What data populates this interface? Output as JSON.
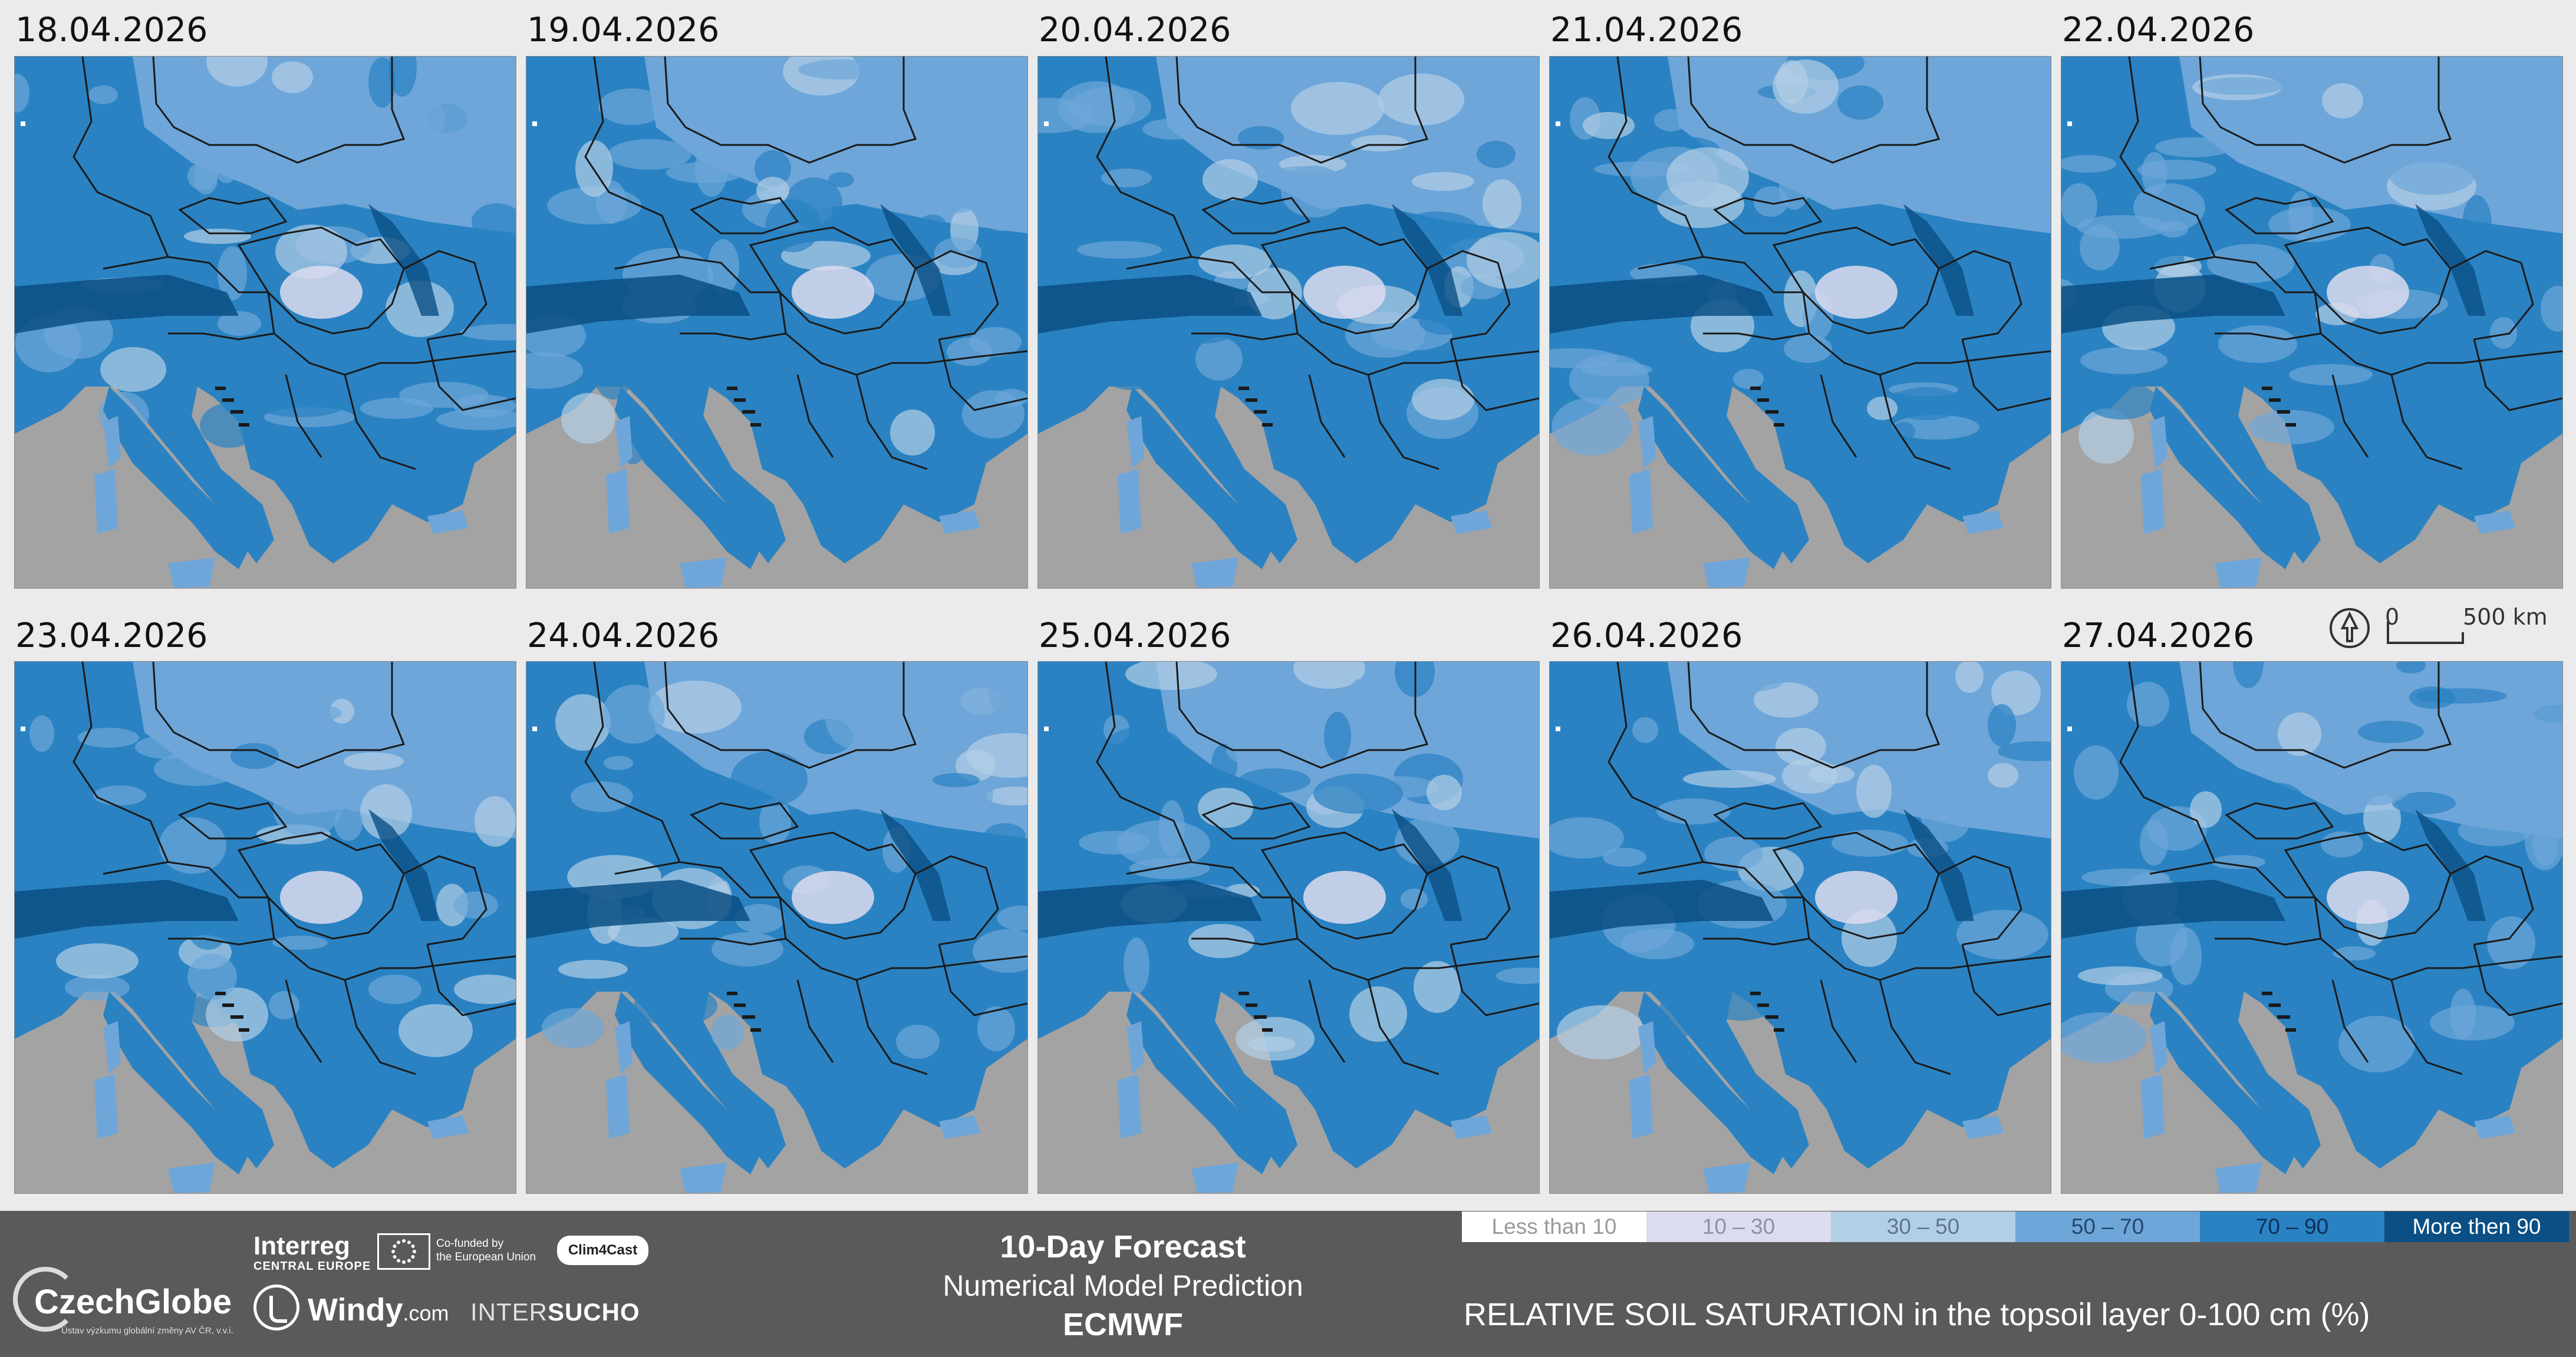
{
  "maps": [
    {
      "date": "18.04.2026"
    },
    {
      "date": "19.04.2026"
    },
    {
      "date": "20.04.2026"
    },
    {
      "date": "21.04.2026"
    },
    {
      "date": "22.04.2026"
    },
    {
      "date": "23.04.2026"
    },
    {
      "date": "24.04.2026"
    },
    {
      "date": "25.04.2026"
    },
    {
      "date": "26.04.2026"
    },
    {
      "date": "27.04.2026"
    }
  ],
  "scale_bar": {
    "start": "0",
    "end": "500 km",
    "icon": "north-arrow-icon"
  },
  "footer": {
    "title": "10-Day Forecast",
    "subtitle": "Numerical Model Prediction",
    "model": "ECMWF",
    "logos": {
      "czechglobe": "CzechGlobe",
      "czechglobe_sub": "Ústav výzkumu globální změny AV ČR, v.v.i.",
      "interreg": "Interreg",
      "interreg_sub": "CENTRAL EUROPE",
      "eu_line1": "Co-funded by",
      "eu_line2": "the European Union",
      "clim4cast": "Clim4Cast",
      "windy": "Windy",
      "windy_com": ".com",
      "intersucho_a": "INTER",
      "intersucho_b": "SUCHO"
    }
  },
  "legend": {
    "title": "RELATIVE SOIL SATURATION in the topsoil layer 0-100 cm (%)",
    "classes": [
      {
        "label": "Less than 10",
        "color": "#ffffff",
        "text_color": "#9a9a9a"
      },
      {
        "label": "10 – 30",
        "color": "#dcdcef",
        "text_color": "#8f8fa8"
      },
      {
        "label": "30 – 50",
        "color": "#b3cfe6",
        "text_color": "#5e7690"
      },
      {
        "label": "50 – 70",
        "color": "#6ea6d9",
        "text_color": "#24476d"
      },
      {
        "label": "70 – 90",
        "color": "#2a82c2",
        "text_color": "#0f2f56"
      },
      {
        "label": "More then 90",
        "color": "#0b4f84",
        "text_color": "#ffffff"
      }
    ]
  },
  "colors": {
    "sea": "#a3a3a3",
    "border_lines": "#1a1a1a",
    "footer_bg": "#5a5a5a",
    "page_bg": "#ebebeb"
  }
}
